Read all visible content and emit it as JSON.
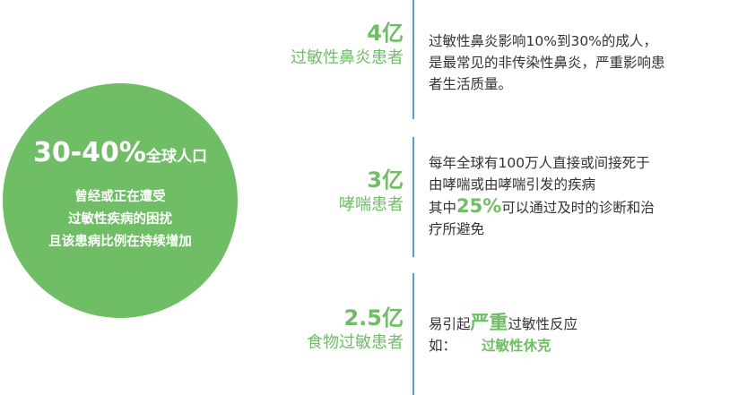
{
  "circle": {
    "headline_value": "30-40%",
    "headline_suffix": "全球人口",
    "lines": [
      "曾经或正在遭受",
      "过敏性疾病的困扰",
      "且该患病比例在持续增加"
    ]
  },
  "stats": [
    {
      "number": "4亿",
      "label": "过敏性鼻炎患者",
      "description": [
        "过敏性鼻炎影响10%到30%的成人，",
        "是最常见的非传染性鼻炎，严重影响患",
        "者生活质量。"
      ]
    },
    {
      "number": "3亿",
      "label": "哮喘患者",
      "description": [
        "每年全球有100万人直接或间接死于",
        "由哮喘或由哮喘引发的疾病"
      ],
      "line3_pre": "其中",
      "line3_highlight": "25%",
      "line3_post": "可以通过及时的诊断和治",
      "line4": "疗所避免"
    },
    {
      "number": "2.5亿",
      "label": "食物过敏患者",
      "line1_pre": "易引起",
      "line1_highlight": "严重",
      "line1_post": "过敏性反应",
      "line2_pre": "如：",
      "line2_highlight": "过敏性休克"
    }
  ],
  "colors": {
    "accent_green": "#6fbe65",
    "divider_blue": "#5b9bd5",
    "text": "#333333"
  }
}
